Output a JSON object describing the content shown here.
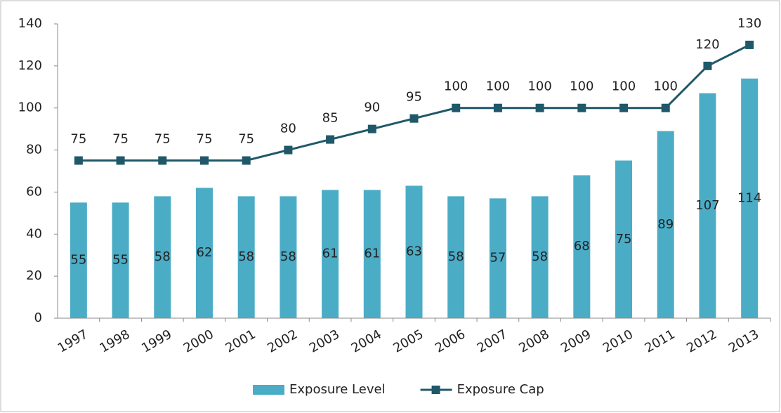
{
  "chart_data": {
    "type": "bar",
    "categories": [
      "1997",
      "1998",
      "1999",
      "2000",
      "2001",
      "2002",
      "2003",
      "2004",
      "2005",
      "2006",
      "2007",
      "2008",
      "2009",
      "2010",
      "2011",
      "2012",
      "2013"
    ],
    "series": [
      {
        "name": "Exposure Level",
        "type": "bar",
        "color": "#4bacc6",
        "values": [
          55,
          55,
          58,
          62,
          58,
          58,
          61,
          61,
          63,
          58,
          57,
          58,
          68,
          75,
          89,
          107,
          114
        ]
      },
      {
        "name": "Exposure Cap",
        "type": "line",
        "color": "#1f5869",
        "values": [
          75,
          75,
          75,
          75,
          75,
          80,
          85,
          90,
          95,
          100,
          100,
          100,
          100,
          100,
          100,
          120,
          130
        ]
      }
    ],
    "ylim": [
      0,
      140
    ],
    "yticks": [
      0,
      20,
      40,
      60,
      80,
      100,
      120,
      140
    ],
    "grid": false,
    "legend": "bottom"
  }
}
